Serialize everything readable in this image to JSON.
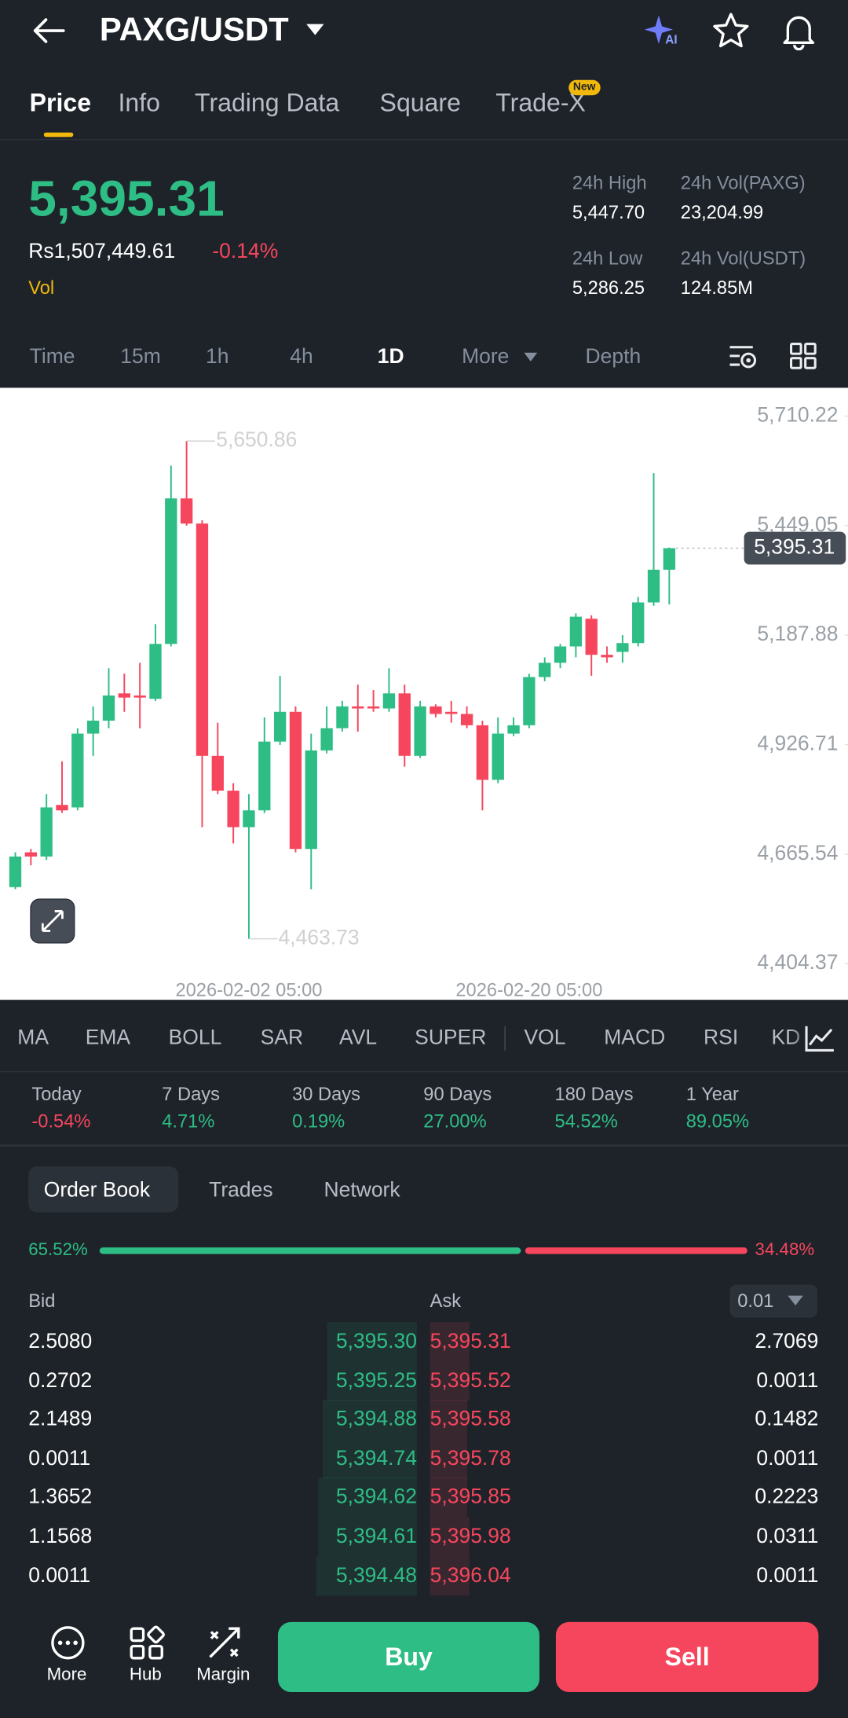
{
  "header": {
    "title": "PAXG/USDT"
  },
  "tabs": {
    "items": [
      "Price",
      "Info",
      "Trading Data",
      "Square",
      "Trade-X"
    ],
    "badge": "New"
  },
  "ticker": {
    "price": "5,395.31",
    "local_price": "Rs1,507,449.61",
    "change": "-0.14%",
    "vol": "Vol",
    "stats": [
      {
        "label": "24h High",
        "value": "5,447.70"
      },
      {
        "label": "24h Vol(PAXG)",
        "value": "23,204.99"
      },
      {
        "label": "24h Low",
        "value": "5,286.25"
      },
      {
        "label": "24h Vol(USDT)",
        "value": "124.85M"
      }
    ]
  },
  "intervals": [
    "Time",
    "15m",
    "1h",
    "4h",
    "1D",
    "More",
    "Depth"
  ],
  "chart_data": {
    "type": "candlestick",
    "categories": [
      null,
      null,
      null,
      null,
      null,
      null,
      null,
      null,
      null,
      null,
      null,
      null,
      null,
      null,
      null,
      "2026-02-02 05:00",
      null,
      null,
      null,
      null,
      null,
      null,
      null,
      null,
      null,
      null,
      null,
      null,
      null,
      null,
      null,
      null,
      null,
      "2026-02-20 05:00",
      null,
      null,
      null,
      null,
      null,
      null,
      null,
      null,
      null
    ],
    "open": [
      4587,
      4670,
      4660,
      4783,
      4777,
      4953,
      4984,
      5049,
      5044,
      5036,
      5167,
      5514,
      5454,
      4900,
      4817,
      4730,
      4770,
      4934,
      5005,
      4678,
      4913,
      4966,
      5018,
      5018,
      5013,
      5049,
      4900,
      5018,
      5005,
      5000,
      4973,
      4843,
      4953,
      4973,
      5088,
      5122,
      5161,
      5227,
      5141,
      5148,
      5169,
      5266,
      5344
    ],
    "high": [
      4670,
      4678,
      4809,
      4887,
      4966,
      5018,
      5109,
      5096,
      5122,
      5214,
      5592,
      5650.86,
      5462,
      4979,
      4835,
      4809,
      4992,
      5091,
      5018,
      4953,
      5018,
      5031,
      5070,
      5057,
      5109,
      5070,
      5031,
      5023,
      5031,
      5018,
      4984,
      4992,
      4992,
      5096,
      5135,
      5167,
      5240,
      5235,
      5161,
      5188,
      5279,
      5574,
      5397
    ],
    "low": [
      4582,
      4639,
      4652,
      4764,
      4770,
      4900,
      4966,
      5005,
      4966,
      5031,
      5161,
      5449,
      4730,
      4809,
      4691,
      4463.73,
      4764,
      4926,
      4670,
      4582,
      4906,
      4958,
      4958,
      5005,
      5005,
      4874,
      4895,
      4992,
      4979,
      4966,
      4770,
      4835,
      4947,
      4966,
      5078,
      5109,
      5135,
      5091,
      5122,
      5122,
      5161,
      5258,
      5261
    ],
    "close": [
      4660,
      4660,
      4777,
      4770,
      4953,
      4984,
      5044,
      5039,
      5039,
      5167,
      5514,
      5454,
      4900,
      4817,
      4730,
      4770,
      4934,
      5005,
      4678,
      4913,
      4966,
      5018,
      5013,
      5013,
      5049,
      4900,
      5018,
      5000,
      5000,
      4973,
      4843,
      4953,
      4973,
      5088,
      5122,
      5161,
      5232,
      5141,
      5135,
      5169,
      5266,
      5344,
      5395.31
    ],
    "ylim": [
      4318,
      5778
    ],
    "yticks": [
      {
        "value": 5710.22,
        "label": "5,710.22"
      },
      {
        "value": 5449.05,
        "label": "5,449.05"
      },
      {
        "value": 5187.88,
        "label": "5,187.88"
      },
      {
        "value": 4926.71,
        "label": "4,926.71"
      },
      {
        "value": 4665.54,
        "label": "4,665.54"
      },
      {
        "value": 4404.37,
        "label": "4,404.37"
      }
    ],
    "high_label": "5,650.86",
    "low_label": "4,463.73",
    "last_price_label": "5,395.31",
    "up_color": "#2ebd85",
    "down_color": "#f6465d"
  },
  "indicators": [
    "MA",
    "EMA",
    "BOLL",
    "SAR",
    "AVL",
    "SUPER",
    "VOL",
    "MACD",
    "RSI",
    "KD"
  ],
  "performance": [
    {
      "label": "Today",
      "value": "-0.54%"
    },
    {
      "label": "7 Days",
      "value": "4.71%"
    },
    {
      "label": "30 Days",
      "value": "0.19%"
    },
    {
      "label": "90 Days",
      "value": "27.00%"
    },
    {
      "label": "180 Days",
      "value": "54.52%"
    },
    {
      "label": "1 Year",
      "value": "89.05%"
    }
  ],
  "order_book": {
    "tabs": [
      "Order Book",
      "Trades",
      "Network"
    ],
    "ratio": {
      "values": [
        65.52,
        34.48
      ],
      "value_labels": [
        "65.52%",
        "34.48%"
      ]
    },
    "bid_header": "Bid",
    "ask_header": "Ask",
    "precision": "0.01",
    "rows": [
      [
        "2.5080",
        "5,395.30",
        "5,395.31",
        "2.7069"
      ],
      [
        "0.2702",
        "5,395.25",
        "5,395.52",
        "0.0011"
      ],
      [
        "2.1489",
        "5,394.88",
        "5,395.58",
        "0.1482"
      ],
      [
        "0.0011",
        "5,394.74",
        "5,395.78",
        "0.0011"
      ],
      [
        "1.3652",
        "5,394.62",
        "5,395.85",
        "0.2223"
      ],
      [
        "1.1568",
        "5,394.61",
        "5,395.98",
        "0.0311"
      ],
      [
        "0.0011",
        "5,394.48",
        "5,396.04",
        "0.0011"
      ]
    ]
  },
  "bottom": {
    "items": [
      "More",
      "Hub",
      "Margin"
    ],
    "buy": "Buy",
    "sell": "Sell"
  }
}
